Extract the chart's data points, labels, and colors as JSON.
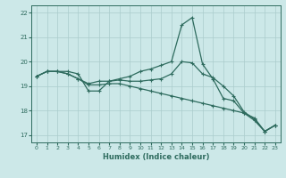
{
  "xlabel": "Humidex (Indice chaleur)",
  "bg_color": "#cce8e8",
  "grid_color": "#aacccc",
  "line_color": "#2e6b5e",
  "xlim": [
    -0.5,
    23.5
  ],
  "ylim": [
    16.7,
    22.3
  ],
  "yticks": [
    17,
    18,
    19,
    20,
    21,
    22
  ],
  "xticks": [
    0,
    1,
    2,
    3,
    4,
    5,
    6,
    7,
    8,
    9,
    10,
    11,
    12,
    13,
    14,
    15,
    16,
    17,
    18,
    19,
    20,
    21,
    22,
    23
  ],
  "series1": {
    "x": [
      0,
      1,
      2,
      3,
      4,
      5,
      6,
      7,
      8,
      9,
      10,
      11,
      12,
      13,
      14,
      15,
      16,
      17,
      18,
      19,
      20,
      21,
      22,
      23
    ],
    "y": [
      19.4,
      19.6,
      19.6,
      19.6,
      19.5,
      18.8,
      18.8,
      19.2,
      19.3,
      19.4,
      19.6,
      19.7,
      19.85,
      20.0,
      21.5,
      21.8,
      19.9,
      19.3,
      18.5,
      18.4,
      17.9,
      17.6,
      17.15,
      17.4
    ]
  },
  "series2": {
    "x": [
      0,
      1,
      2,
      3,
      4,
      5,
      6,
      7,
      8,
      9,
      10,
      11,
      12,
      13,
      14,
      15,
      16,
      17,
      18,
      19,
      20,
      21,
      22,
      23
    ],
    "y": [
      19.4,
      19.6,
      19.6,
      19.5,
      19.3,
      19.05,
      19.05,
      19.1,
      19.1,
      19.0,
      18.9,
      18.8,
      18.7,
      18.6,
      18.5,
      18.4,
      18.3,
      18.2,
      18.1,
      18.0,
      17.9,
      17.7,
      17.15,
      17.4
    ]
  },
  "series3": {
    "x": [
      0,
      1,
      2,
      3,
      4,
      5,
      6,
      7,
      8,
      9,
      10,
      11,
      12,
      13,
      14,
      15,
      16,
      17,
      18,
      19,
      20,
      21,
      22,
      23
    ],
    "y": [
      19.4,
      19.6,
      19.6,
      19.5,
      19.3,
      19.1,
      19.2,
      19.2,
      19.25,
      19.2,
      19.2,
      19.25,
      19.3,
      19.5,
      20.0,
      19.95,
      19.5,
      19.35,
      19.0,
      18.6,
      17.95,
      17.65,
      17.15,
      17.4
    ]
  }
}
